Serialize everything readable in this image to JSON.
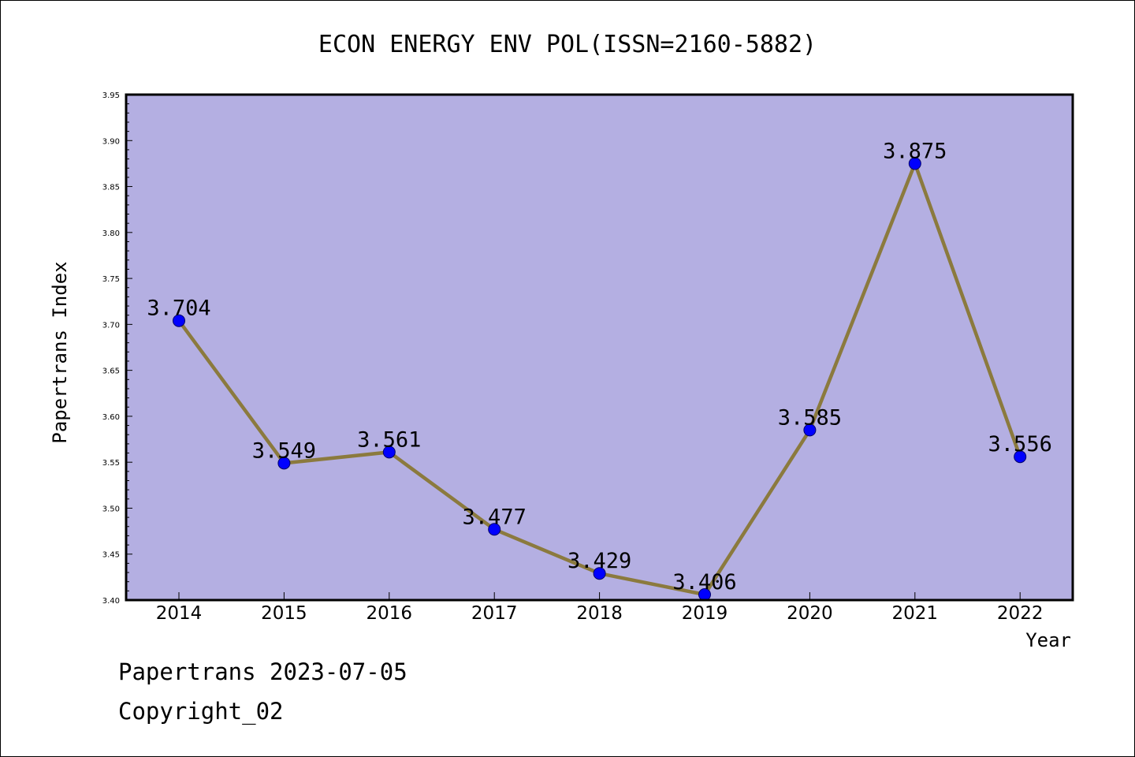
{
  "chart_data": {
    "type": "line",
    "title": "ECON ENERGY ENV POL(ISSN=2160-5882)",
    "xlabel": "Year",
    "ylabel": "Papertrans Index",
    "categories": [
      "2014",
      "2015",
      "2016",
      "2017",
      "2018",
      "2019",
      "2020",
      "2021",
      "2022"
    ],
    "values": [
      3.704,
      3.549,
      3.561,
      3.477,
      3.429,
      3.406,
      3.585,
      3.875,
      3.556
    ],
    "value_labels": [
      "3.704",
      "3.549",
      "3.561",
      "3.477",
      "3.429",
      "3.406",
      "3.585",
      "3.875",
      "3.556"
    ],
    "ylim": [
      3.4,
      3.95
    ],
    "yticks": [
      "3.40",
      "3.45",
      "3.50",
      "3.55",
      "3.60",
      "3.65",
      "3.70",
      "3.75",
      "3.80",
      "3.85",
      "3.90",
      "3.95"
    ],
    "grid": false,
    "colors": {
      "plot_background": "#b4afe2",
      "line": "#8b7a3e",
      "marker": "#0000ff"
    }
  },
  "footer": {
    "line1": "Papertrans 2023-07-05",
    "line2": "Copyright_02"
  }
}
